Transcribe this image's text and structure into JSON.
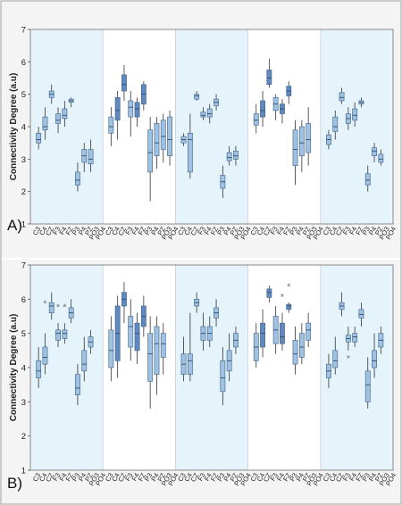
{
  "figure_border_color": "#9a9a9a",
  "colors": {
    "box_light": "#9fc2e3",
    "box_dark": "#5f89bf",
    "box_edge": "#3f5f86",
    "whisker": "#333333",
    "band": "#e5f3fa",
    "outlier": "#777777"
  },
  "chart_data": [
    {
      "type": "box",
      "panel_label": "A)",
      "ylabel": "Connectivity Degree (a.u)",
      "ylim": [
        1,
        7
      ],
      "yticks": [
        "1",
        "2",
        "3",
        "4",
        "5",
        "6",
        "7"
      ],
      "grid": false,
      "shaded_groups": [
        0,
        2,
        4
      ],
      "groups": [
        {
          "categories": [
            "C3",
            "C4",
            "CZ",
            "F3",
            "F4",
            "FZ",
            "P3",
            "P4",
            "PZ",
            "PO3",
            "PO4"
          ],
          "boxes": [
            {
              "min": 3.3,
              "q1": 3.5,
              "median": 3.6,
              "q3": 3.8,
              "max": 4.0
            },
            {
              "min": 3.6,
              "q1": 3.9,
              "median": 4.0,
              "q3": 4.3,
              "max": 4.6
            },
            {
              "min": 4.7,
              "q1": 4.9,
              "median": 5.0,
              "q3": 5.1,
              "max": 5.3
            },
            {
              "min": 3.8,
              "q1": 4.1,
              "median": 4.2,
              "q3": 4.4,
              "max": 4.6
            },
            {
              "min": 4.0,
              "q1": 4.25,
              "median": 4.35,
              "q3": 4.55,
              "max": 4.8
            },
            {
              "min": 4.6,
              "q1": 4.75,
              "median": 4.8,
              "q3": 4.85,
              "max": 4.9
            },
            {
              "min": 2.0,
              "q1": 2.2,
              "median": 2.35,
              "q3": 2.6,
              "max": 2.9
            },
            {
              "min": 2.6,
              "q1": 2.9,
              "median": 3.1,
              "q3": 3.3,
              "max": 3.5
            },
            {
              "min": 2.6,
              "q1": 2.85,
              "median": 3.0,
              "q3": 3.3,
              "max": 3.6
            },
            null,
            null
          ]
        },
        {
          "categories": [
            "C3",
            "C4",
            "CZ",
            "F3",
            "F4",
            "FZ",
            "P3",
            "P4",
            "PZ",
            "PO3",
            "PO4"
          ],
          "boxes": [
            {
              "min": 3.4,
              "q1": 3.8,
              "median": 4.0,
              "q3": 4.3,
              "max": 4.6
            },
            {
              "min": 3.6,
              "q1": 4.2,
              "median": 4.5,
              "q3": 4.9,
              "max": 5.1
            },
            {
              "min": 4.8,
              "q1": 5.1,
              "median": 5.3,
              "q3": 5.6,
              "max": 5.9
            },
            {
              "min": 3.7,
              "q1": 4.3,
              "median": 4.6,
              "q3": 4.8,
              "max": 5.1
            },
            {
              "min": 4.0,
              "q1": 4.3,
              "median": 4.55,
              "q3": 4.75,
              "max": 4.9
            },
            {
              "min": 4.5,
              "q1": 4.7,
              "median": 5.0,
              "q3": 5.3,
              "max": 5.4
            },
            {
              "min": 1.7,
              "q1": 2.6,
              "median": 3.2,
              "q3": 3.9,
              "max": 4.3
            },
            {
              "min": 2.7,
              "q1": 3.1,
              "median": 3.5,
              "q3": 4.1,
              "max": 4.3
            },
            {
              "min": 2.9,
              "q1": 3.3,
              "median": 3.7,
              "q3": 4.2,
              "max": 4.4
            },
            {
              "min": 2.8,
              "q1": 3.1,
              "median": 3.6,
              "q3": 4.3,
              "max": 4.5
            },
            null
          ]
        },
        {
          "categories": [
            "C3",
            "C4",
            "CZ",
            "F3",
            "F4",
            "FZ",
            "P3",
            "P4",
            "PZ",
            "PO3",
            "PO4"
          ],
          "boxes": [
            {
              "min": 3.4,
              "q1": 3.5,
              "median": 3.6,
              "q3": 3.7,
              "max": 3.8
            },
            {
              "min": 2.4,
              "q1": 2.6,
              "median": 3.6,
              "q3": 3.8,
              "max": 4.4
            },
            {
              "min": 4.8,
              "q1": 4.85,
              "median": 4.95,
              "q3": 5.0,
              "max": 5.1
            },
            {
              "min": 4.2,
              "q1": 4.3,
              "median": 4.35,
              "q3": 4.45,
              "max": 4.6
            },
            {
              "min": 4.1,
              "q1": 4.3,
              "median": 4.4,
              "q3": 4.55,
              "max": 4.7
            },
            {
              "min": 4.5,
              "q1": 4.65,
              "median": 4.75,
              "q3": 4.85,
              "max": 5.0
            },
            {
              "min": 1.8,
              "q1": 2.1,
              "median": 2.3,
              "q3": 2.5,
              "max": 2.8
            },
            {
              "min": 2.8,
              "q1": 2.95,
              "median": 3.05,
              "q3": 3.2,
              "max": 3.4
            },
            {
              "min": 2.8,
              "q1": 3.0,
              "median": 3.1,
              "q3": 3.25,
              "max": 3.4
            },
            null,
            null
          ]
        },
        {
          "categories": [
            "C3",
            "C4",
            "CZ",
            "F3",
            "F4",
            "FZ",
            "P3",
            "P4",
            "PZ",
            "PO3",
            "PO4"
          ],
          "boxes": [
            {
              "min": 3.8,
              "q1": 4.05,
              "median": 4.2,
              "q3": 4.4,
              "max": 4.7
            },
            {
              "min": 4.0,
              "q1": 4.3,
              "median": 4.5,
              "q3": 4.8,
              "max": 5.1
            },
            {
              "min": 5.2,
              "q1": 5.3,
              "median": 5.5,
              "q3": 5.75,
              "max": 6.1
            },
            {
              "min": 4.2,
              "q1": 4.5,
              "median": 4.7,
              "q3": 4.9,
              "max": 5.0
            },
            {
              "min": 4.1,
              "q1": 4.4,
              "median": 4.55,
              "q3": 4.7,
              "max": 4.85
            },
            {
              "min": 4.7,
              "q1": 4.95,
              "median": 5.1,
              "q3": 5.25,
              "max": 5.4
            },
            {
              "min": 2.2,
              "q1": 2.8,
              "median": 3.3,
              "q3": 3.9,
              "max": 4.2
            },
            {
              "min": 2.6,
              "q1": 3.1,
              "median": 3.5,
              "q3": 4.0,
              "max": 4.2
            },
            {
              "min": 2.8,
              "q1": 3.2,
              "median": 3.6,
              "q3": 4.1,
              "max": 4.6
            },
            null,
            null
          ]
        },
        {
          "categories": [
            "C3",
            "C4",
            "CZ",
            "F3",
            "F4",
            "FZ",
            "P3",
            "P4",
            "PZ",
            "PO3",
            "PO4"
          ],
          "boxes": [
            {
              "min": 3.3,
              "q1": 3.45,
              "median": 3.6,
              "q3": 3.75,
              "max": 3.9
            },
            {
              "min": 3.6,
              "q1": 3.85,
              "median": 4.0,
              "q3": 4.3,
              "max": 4.5
            },
            {
              "min": 4.7,
              "q1": 4.8,
              "median": 4.9,
              "q3": 5.05,
              "max": 5.2
            },
            {
              "min": 3.9,
              "q1": 4.1,
              "median": 4.25,
              "q3": 4.4,
              "max": 4.6
            },
            {
              "min": 4.0,
              "q1": 4.2,
              "median": 4.35,
              "q3": 4.55,
              "max": 4.75
            },
            {
              "min": 4.6,
              "q1": 4.7,
              "median": 4.75,
              "q3": 4.8,
              "max": 4.9
            },
            {
              "min": 2.0,
              "q1": 2.2,
              "median": 2.35,
              "q3": 2.55,
              "max": 2.8
            },
            {
              "min": 2.9,
              "q1": 3.1,
              "median": 3.25,
              "q3": 3.35,
              "max": 3.5
            },
            {
              "min": 2.8,
              "q1": 2.9,
              "median": 3.0,
              "q3": 3.15,
              "max": 3.3
            },
            null,
            null
          ]
        }
      ]
    },
    {
      "type": "box",
      "panel_label": "B)",
      "ylabel": "Connectivity Degree (a.u)",
      "ylim": [
        1,
        7
      ],
      "yticks": [
        "1",
        "2",
        "3",
        "4",
        "5",
        "6",
        "7"
      ],
      "grid": false,
      "shaded_groups": [
        0,
        2,
        4
      ],
      "groups": [
        {
          "categories": [
            "C3",
            "C4",
            "CZ",
            "F3",
            "F4",
            "FZ",
            "P3",
            "P4",
            "PZ",
            "PO3",
            "PO4"
          ],
          "boxes": [
            {
              "min": 3.4,
              "q1": 3.7,
              "median": 3.9,
              "q3": 4.2,
              "max": 4.6
            },
            {
              "min": 3.8,
              "q1": 4.1,
              "median": 4.3,
              "q3": 4.6,
              "max": 5.0,
              "outliers": [
                5.9
              ]
            },
            {
              "min": 5.4,
              "q1": 5.6,
              "median": 5.8,
              "q3": 5.9,
              "max": 6.2
            },
            {
              "min": 4.6,
              "q1": 4.8,
              "median": 5.0,
              "q3": 5.1,
              "max": 5.3,
              "outliers": [
                5.8
              ]
            },
            {
              "min": 4.7,
              "q1": 4.85,
              "median": 5.0,
              "q3": 5.1,
              "max": 5.3,
              "outliers": [
                5.8
              ]
            },
            {
              "min": 5.3,
              "q1": 5.45,
              "median": 5.6,
              "q3": 5.75,
              "max": 6.0
            },
            {
              "min": 2.9,
              "q1": 3.2,
              "median": 3.4,
              "q3": 3.8,
              "max": 4.1
            },
            {
              "min": 3.6,
              "q1": 3.9,
              "median": 4.1,
              "q3": 4.5,
              "max": 4.9
            },
            {
              "min": 4.4,
              "q1": 4.6,
              "median": 4.75,
              "q3": 4.9,
              "max": 5.1
            },
            null,
            null
          ]
        },
        {
          "categories": [
            "C3",
            "C4",
            "CZ",
            "F3",
            "F4",
            "FZ",
            "P3",
            "P4",
            "PZ",
            "PO3",
            "PO4"
          ],
          "boxes": [
            {
              "min": 3.6,
              "q1": 4.0,
              "median": 4.5,
              "q3": 5.1,
              "max": 5.5
            },
            {
              "min": 3.7,
              "q1": 4.2,
              "median": 5.0,
              "q3": 5.8,
              "max": 6.1
            },
            {
              "min": 5.3,
              "q1": 5.8,
              "median": 6.0,
              "q3": 6.2,
              "max": 6.5
            },
            {
              "min": 4.2,
              "q1": 4.6,
              "median": 5.2,
              "q3": 5.5,
              "max": 6.0
            },
            {
              "min": 4.1,
              "q1": 4.5,
              "median": 5.0,
              "q3": 5.3,
              "max": 5.6
            },
            {
              "min": 4.9,
              "q1": 5.2,
              "median": 5.5,
              "q3": 5.8,
              "max": 6.1
            },
            {
              "min": 2.8,
              "q1": 3.6,
              "median": 4.4,
              "q3": 5.0,
              "max": 5.5
            },
            {
              "min": 3.2,
              "q1": 3.8,
              "median": 4.7,
              "q3": 5.2,
              "max": 5.5
            },
            {
              "min": 3.8,
              "q1": 4.3,
              "median": 4.7,
              "q3": 5.0,
              "max": 5.3
            },
            null,
            null
          ]
        },
        {
          "categories": [
            "C3",
            "C4",
            "CZ",
            "F3",
            "F4",
            "FZ",
            "P3",
            "P4",
            "PZ",
            "PO3",
            "PO4"
          ],
          "boxes": [
            {
              "min": 3.6,
              "q1": 3.8,
              "median": 4.1,
              "q3": 4.4,
              "max": 4.9
            },
            {
              "min": 3.6,
              "q1": 3.8,
              "median": 4.2,
              "q3": 4.4,
              "max": 5.6
            },
            {
              "min": 5.6,
              "q1": 5.8,
              "median": 5.9,
              "q3": 6.0,
              "max": 6.2
            },
            {
              "min": 4.5,
              "q1": 4.8,
              "median": 5.0,
              "q3": 5.2,
              "max": 5.6
            },
            {
              "min": 4.6,
              "q1": 4.8,
              "median": 5.0,
              "q3": 5.2,
              "max": 5.5
            },
            {
              "min": 5.2,
              "q1": 5.45,
              "median": 5.6,
              "q3": 5.75,
              "max": 6.0
            },
            {
              "min": 2.9,
              "q1": 3.3,
              "median": 3.7,
              "q3": 4.2,
              "max": 4.6
            },
            {
              "min": 3.6,
              "q1": 3.9,
              "median": 4.2,
              "q3": 4.5,
              "max": 5.0
            },
            {
              "min": 4.4,
              "q1": 4.6,
              "median": 4.8,
              "q3": 5.0,
              "max": 5.2
            },
            null,
            null
          ]
        },
        {
          "categories": [
            "C3",
            "C4",
            "CZ",
            "F3",
            "F4",
            "FZ",
            "P3",
            "P4",
            "PZ",
            "PO3",
            "PO4"
          ],
          "boxes": [
            {
              "min": 4.0,
              "q1": 4.2,
              "median": 4.6,
              "q3": 5.0,
              "max": 5.3
            },
            {
              "min": 4.3,
              "q1": 4.6,
              "median": 5.0,
              "q3": 5.3,
              "max": 5.7
            },
            {
              "min": 5.9,
              "q1": 6.05,
              "median": 6.2,
              "q3": 6.3,
              "max": 6.4
            },
            {
              "min": 4.4,
              "q1": 4.7,
              "median": 5.1,
              "q3": 5.5,
              "max": 5.8
            },
            {
              "min": 4.5,
              "q1": 4.7,
              "median": 4.9,
              "q3": 5.3,
              "max": 5.6,
              "outliers": [
                6.1
              ]
            },
            {
              "min": 5.6,
              "q1": 5.7,
              "median": 5.8,
              "q3": 5.85,
              "max": 5.9,
              "outliers": [
                6.4
              ]
            },
            {
              "min": 3.8,
              "q1": 4.1,
              "median": 4.4,
              "q3": 4.8,
              "max": 5.2
            },
            {
              "min": 4.1,
              "q1": 4.3,
              "median": 4.6,
              "q3": 5.0,
              "max": 5.3
            },
            {
              "min": 4.6,
              "q1": 4.8,
              "median": 5.1,
              "q3": 5.3,
              "max": 5.6
            },
            null,
            null
          ]
        },
        {
          "categories": [
            "C3",
            "C4",
            "CZ",
            "F3",
            "F4",
            "FZ",
            "P3",
            "P4",
            "PZ",
            "PO3",
            "PO4"
          ],
          "boxes": [
            {
              "min": 3.4,
              "q1": 3.7,
              "median": 3.9,
              "q3": 4.1,
              "max": 4.4
            },
            {
              "min": 3.8,
              "q1": 4.0,
              "median": 4.2,
              "q3": 4.5,
              "max": 4.9
            },
            {
              "min": 5.5,
              "q1": 5.7,
              "median": 5.8,
              "q3": 5.9,
              "max": 6.2
            },
            {
              "min": 4.5,
              "q1": 4.75,
              "median": 4.85,
              "q3": 4.95,
              "max": 5.2,
              "outliers": [
                4.3
              ]
            },
            {
              "min": 4.6,
              "q1": 4.75,
              "median": 4.9,
              "q3": 5.0,
              "max": 5.2
            },
            {
              "min": 5.2,
              "q1": 5.45,
              "median": 5.55,
              "q3": 5.7,
              "max": 5.9
            },
            {
              "min": 2.8,
              "q1": 3.0,
              "median": 3.5,
              "q3": 3.9,
              "max": 4.3
            },
            {
              "min": 3.7,
              "q1": 4.0,
              "median": 4.2,
              "q3": 4.5,
              "max": 5.0
            },
            {
              "min": 4.4,
              "q1": 4.6,
              "median": 4.8,
              "q3": 5.0,
              "max": 5.2
            },
            null,
            null
          ]
        }
      ]
    }
  ]
}
